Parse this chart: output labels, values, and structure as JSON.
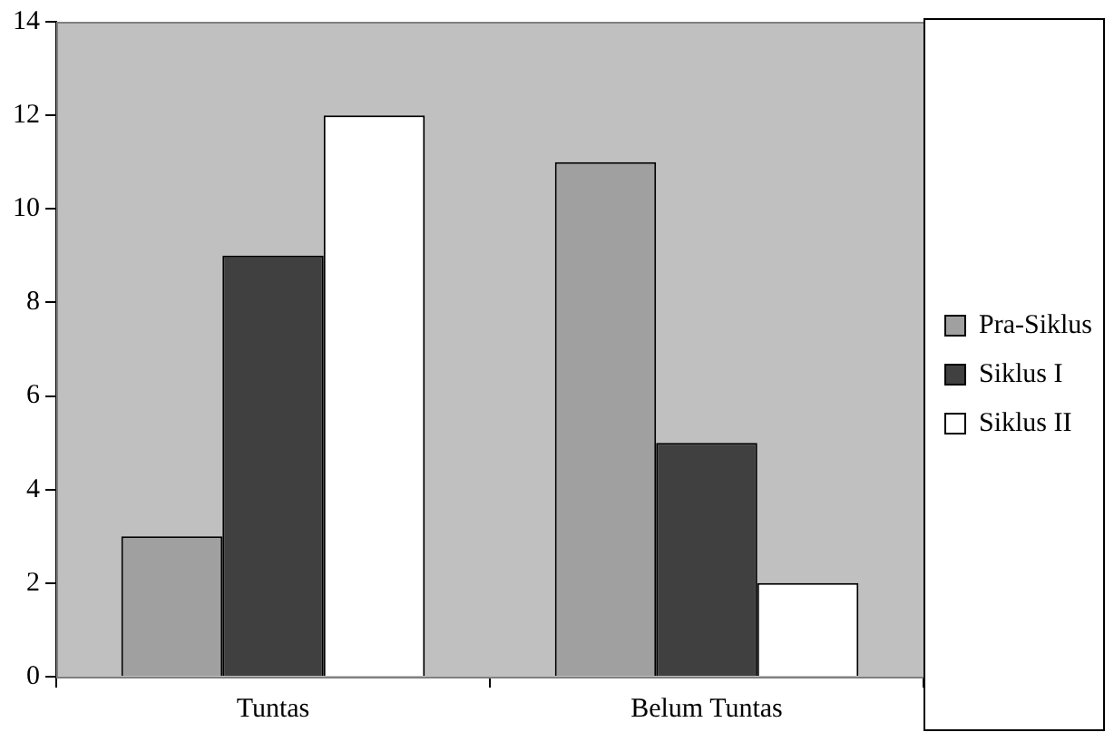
{
  "chart_data": {
    "type": "bar",
    "categories": [
      "Tuntas",
      "Belum Tuntas"
    ],
    "series": [
      {
        "name": "Pra-Siklus",
        "color": "#a0a0a0",
        "values": [
          3,
          11
        ]
      },
      {
        "name": "Siklus I",
        "color": "#404040",
        "values": [
          9,
          5
        ]
      },
      {
        "name": "Siklus II",
        "color": "#ffffff",
        "values": [
          12,
          2
        ]
      }
    ],
    "ylim": [
      0,
      14
    ],
    "yticks": [
      0,
      2,
      4,
      6,
      8,
      10,
      12,
      14
    ],
    "grid": false,
    "legend": "right"
  }
}
